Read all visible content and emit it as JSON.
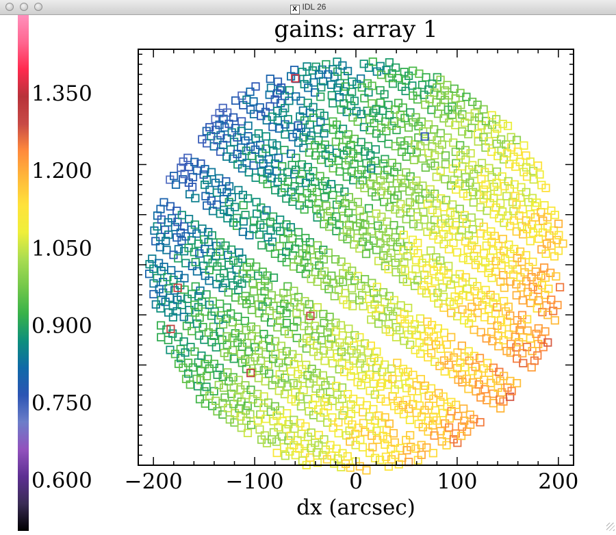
{
  "window": {
    "title": "IDL 26",
    "icon": "x11-icon",
    "icon_glyph": "X"
  },
  "chart_data": {
    "type": "scatter",
    "title": "gains: array 1",
    "xlabel": "dx (arcsec)",
    "ylabel": "",
    "xlim": [
      -215,
      215
    ],
    "ylim": [
      -200,
      215
    ],
    "x_ticks": [
      -200,
      -100,
      0,
      100,
      200
    ],
    "x_tick_labels": [
      "−200",
      "−100",
      "0",
      "100",
      "200"
    ],
    "y_major_ticks": [
      -100,
      -50,
      0,
      50,
      100
    ],
    "colorbar": {
      "min": 0.5,
      "max": 1.5,
      "ticks": [
        0.6,
        0.75,
        0.9,
        1.05,
        1.2,
        1.35
      ],
      "tick_labels": [
        "0.600",
        "0.750",
        "0.900",
        "1.050",
        "1.200",
        "1.350"
      ],
      "colormap": [
        "#000000",
        "#3a2c55",
        "#5d2f92",
        "#9252bd",
        "#6c7ec9",
        "#2c55b4",
        "#0f69a8",
        "#0d8f7d",
        "#38b24a",
        "#74c84a",
        "#a9dc52",
        "#efef3a",
        "#ffe23a",
        "#ffb93a",
        "#ff8a3c",
        "#c84a46",
        "#b8323a",
        "#ff2a4e",
        "#ff6690",
        "#ff90bc"
      ]
    },
    "field_of_view": {
      "center": [
        0,
        0
      ],
      "radius": 205
    },
    "marker": {
      "shape": "open-square",
      "size_arcsec": 7
    },
    "gain_model": {
      "base": 1.0,
      "slope_per_arcsec": 0.0011,
      "gradient_direction": [
        0.8,
        -0.6
      ],
      "spread": 0.06
    },
    "detector_bands": {
      "tilt_deg": -35,
      "spacing_arcsec": 53,
      "gap_fraction": 0.2
    },
    "notable_pixels": [
      {
        "x": -60,
        "y": 186,
        "gain": 1.36
      },
      {
        "x": -75,
        "y": 174,
        "gain": 0.83
      },
      {
        "x": -57,
        "y": 139,
        "gain": 0.77
      },
      {
        "x": 68,
        "y": 128,
        "gain": 0.76
      },
      {
        "x": 15,
        "y": 96,
        "gain": 0.85
      },
      {
        "x": -176,
        "y": -23,
        "gain": 1.3
      },
      {
        "x": -183,
        "y": -64,
        "gain": 1.3
      },
      {
        "x": -104,
        "y": -108,
        "gain": 1.32
      },
      {
        "x": -45,
        "y": -51,
        "gain": 1.3
      }
    ]
  }
}
